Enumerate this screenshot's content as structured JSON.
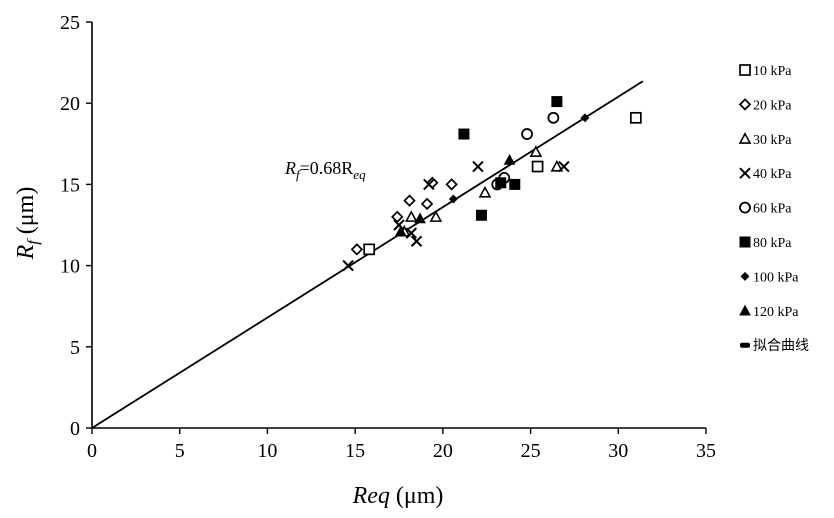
{
  "chart_data": {
    "type": "scatter",
    "title": "",
    "xlabel": {
      "main": "Req",
      "unit": " (μm)"
    },
    "ylabel": {
      "main": "R",
      "subscript": "f",
      "unit": " (μm)"
    },
    "xlim": [
      0,
      35
    ],
    "ylim": [
      0,
      25
    ],
    "x_ticks": [
      0,
      5,
      10,
      15,
      20,
      25,
      30,
      35
    ],
    "y_ticks": [
      0,
      5,
      10,
      15,
      20,
      25
    ],
    "grid": false,
    "legend_position": "right",
    "series": [
      {
        "name": "10 kPa",
        "marker": "square-open",
        "points": [
          [
            15.8,
            11.0
          ],
          [
            25.4,
            16.1
          ],
          [
            31.0,
            19.1
          ]
        ]
      },
      {
        "name": "20 kPa",
        "marker": "diamond-open",
        "points": [
          [
            15.1,
            11.0
          ],
          [
            17.4,
            13.0
          ],
          [
            18.1,
            14.0
          ],
          [
            19.4,
            15.1
          ],
          [
            20.5,
            15.0
          ],
          [
            19.1,
            13.8
          ]
        ]
      },
      {
        "name": "30 kPa",
        "marker": "triangle-open",
        "points": [
          [
            17.8,
            12.1
          ],
          [
            18.2,
            13.0
          ],
          [
            19.6,
            13.0
          ],
          [
            22.4,
            14.5
          ],
          [
            25.3,
            17.0
          ],
          [
            26.5,
            16.1
          ]
        ]
      },
      {
        "name": "40 kPa",
        "marker": "x",
        "points": [
          [
            14.6,
            10.0
          ],
          [
            17.5,
            12.5
          ],
          [
            18.2,
            12.0
          ],
          [
            18.5,
            11.5
          ],
          [
            19.2,
            15.0
          ],
          [
            22.0,
            16.1
          ],
          [
            26.9,
            16.1
          ]
        ]
      },
      {
        "name": "60 kPa",
        "marker": "circle-open",
        "points": [
          [
            23.1,
            15.0
          ],
          [
            23.5,
            15.4
          ],
          [
            24.8,
            18.1
          ],
          [
            26.3,
            19.1
          ]
        ]
      },
      {
        "name": "80 kPa",
        "marker": "square-filled",
        "points": [
          [
            21.2,
            18.1
          ],
          [
            22.2,
            13.1
          ],
          [
            23.3,
            15.1
          ],
          [
            24.1,
            15.0
          ],
          [
            26.5,
            20.1
          ]
        ]
      },
      {
        "name": "100 kPa",
        "marker": "diamond-filled",
        "points": [
          [
            20.6,
            14.1
          ],
          [
            28.1,
            19.1
          ]
        ]
      },
      {
        "name": "120 kPa",
        "marker": "triangle-filled",
        "points": [
          [
            17.6,
            12.1
          ],
          [
            18.7,
            12.9
          ],
          [
            23.8,
            16.5
          ]
        ]
      }
    ],
    "fit_line": {
      "name": "拟合曲线",
      "slope": 0.68,
      "x_range": [
        0,
        31.4
      ],
      "annotation": {
        "prefix": "R",
        "prefix_sub": "f",
        "middle": "=0.68R",
        "suffix_sub": "eq"
      }
    }
  }
}
